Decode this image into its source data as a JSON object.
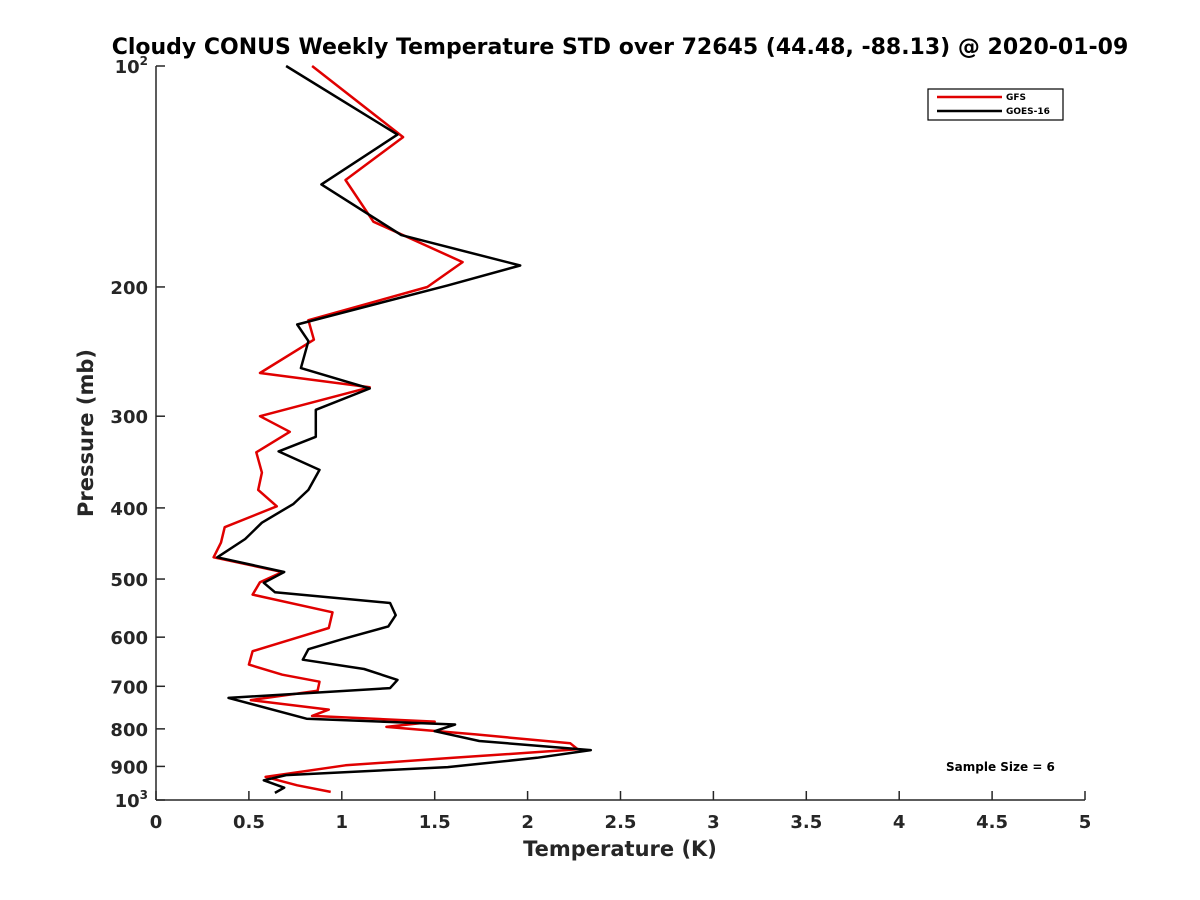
{
  "chart_data": {
    "type": "line",
    "title": "Cloudy CONUS Weekly Temperature STD over 72645 (44.48, -88.13) @ 2020-01-09",
    "xlabel": "Temperature (K)",
    "ylabel": "Pressure (mb)",
    "xlim": [
      0,
      5
    ],
    "ylim": [
      100,
      1000
    ],
    "yscale": "log",
    "y_reversed": true,
    "grid": false,
    "x_ticks": [
      0,
      0.5,
      1,
      1.5,
      2,
      2.5,
      3,
      3.5,
      4,
      4.5,
      5
    ],
    "x_tick_labels": [
      "0",
      "0.5",
      "1",
      "1.5",
      "2",
      "2.5",
      "3",
      "3.5",
      "4",
      "4.5",
      "5"
    ],
    "y_ticks": [
      100,
      200,
      300,
      400,
      500,
      600,
      700,
      800,
      900,
      1000
    ],
    "y_tick_labels": [
      {
        "base": "10",
        "exp": "2"
      },
      {
        "base": "200",
        "exp": ""
      },
      {
        "base": "300",
        "exp": ""
      },
      {
        "base": "400",
        "exp": ""
      },
      {
        "base": "500",
        "exp": ""
      },
      {
        "base": "600",
        "exp": ""
      },
      {
        "base": "700",
        "exp": ""
      },
      {
        "base": "800",
        "exp": ""
      },
      {
        "base": "900",
        "exp": ""
      },
      {
        "base": "10",
        "exp": "3"
      }
    ],
    "legend_position": "top-right",
    "annotation": "Sample Size = 6",
    "series": [
      {
        "name": "GFS",
        "color": "#e00000",
        "points": [
          [
            0.84,
            100
          ],
          [
            1.33,
            125
          ],
          [
            1.02,
            143
          ],
          [
            1.17,
            163
          ],
          [
            1.65,
            185
          ],
          [
            1.46,
            200
          ],
          [
            0.82,
            222
          ],
          [
            0.85,
            236
          ],
          [
            0.56,
            262
          ],
          [
            1.15,
            274
          ],
          [
            0.56,
            300
          ],
          [
            0.72,
            315
          ],
          [
            0.54,
            336
          ],
          [
            0.57,
            358
          ],
          [
            0.55,
            378
          ],
          [
            0.65,
            398
          ],
          [
            0.37,
            425
          ],
          [
            0.35,
            446
          ],
          [
            0.31,
            467
          ],
          [
            0.68,
            489
          ],
          [
            0.56,
            505
          ],
          [
            0.52,
            525
          ],
          [
            0.95,
            555
          ],
          [
            0.93,
            583
          ],
          [
            0.52,
            627
          ],
          [
            0.5,
            654
          ],
          [
            0.68,
            675
          ],
          [
            0.88,
            690
          ],
          [
            0.87,
            710
          ],
          [
            0.51,
            731
          ],
          [
            0.93,
            753
          ],
          [
            0.84,
            768
          ],
          [
            1.5,
            782
          ],
          [
            1.24,
            795
          ],
          [
            1.72,
            814
          ],
          [
            2.23,
            837
          ],
          [
            2.27,
            853
          ],
          [
            1.6,
            876
          ],
          [
            1.02,
            897
          ],
          [
            0.59,
            930
          ],
          [
            0.76,
            955
          ],
          [
            0.94,
            975
          ]
        ]
      },
      {
        "name": "GOES-16",
        "color": "#000000",
        "points": [
          [
            0.7,
            100
          ],
          [
            1.3,
            124
          ],
          [
            0.89,
            145
          ],
          [
            1.32,
            170
          ],
          [
            1.96,
            187
          ],
          [
            1.57,
            199
          ],
          [
            0.76,
            225
          ],
          [
            0.82,
            237
          ],
          [
            0.78,
            258
          ],
          [
            1.15,
            275
          ],
          [
            0.86,
            294
          ],
          [
            0.86,
            320
          ],
          [
            0.66,
            335
          ],
          [
            0.88,
            355
          ],
          [
            0.82,
            378
          ],
          [
            0.74,
            395
          ],
          [
            0.57,
            419
          ],
          [
            0.48,
            441
          ],
          [
            0.33,
            467
          ],
          [
            0.69,
            489
          ],
          [
            0.58,
            506
          ],
          [
            0.64,
            521
          ],
          [
            1.26,
            539
          ],
          [
            1.29,
            560
          ],
          [
            1.25,
            580
          ],
          [
            1.0,
            604
          ],
          [
            0.82,
            623
          ],
          [
            0.79,
            644
          ],
          [
            1.12,
            663
          ],
          [
            1.3,
            686
          ],
          [
            1.26,
            704
          ],
          [
            0.39,
            726
          ],
          [
            0.81,
            775
          ],
          [
            1.61,
            789
          ],
          [
            1.5,
            806
          ],
          [
            1.74,
            831
          ],
          [
            2.34,
            855
          ],
          [
            2.05,
            876
          ],
          [
            1.57,
            902
          ],
          [
            0.7,
            925
          ],
          [
            0.58,
            940
          ],
          [
            0.69,
            962
          ],
          [
            0.64,
            978
          ]
        ]
      }
    ]
  }
}
